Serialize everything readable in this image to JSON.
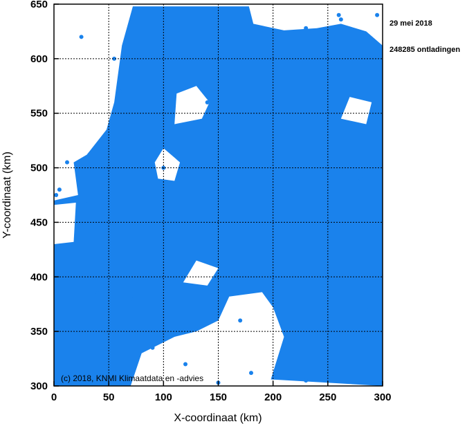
{
  "chart_data": {
    "type": "scatter",
    "xlabel": "X-coordinaat (km)",
    "ylabel": "Y-coordinaat (km)",
    "xlim": [
      0,
      300
    ],
    "ylim": [
      300,
      650
    ],
    "xticks": [
      0,
      50,
      100,
      150,
      200,
      250,
      300
    ],
    "yticks": [
      300,
      350,
      400,
      450,
      500,
      550,
      600,
      650
    ],
    "grid": true,
    "annotations": {
      "date": "29 mei 2018",
      "count": "248285 ontladingen",
      "copyright": "(c) 2018, KNMI Klimaatdata en -advies"
    },
    "series": [
      {
        "name": "ontladingen",
        "color": "#1a82ec",
        "coverage": [
          [
            0,
            300
          ],
          [
            70,
            300
          ],
          [
            80,
            330
          ],
          [
            110,
            345
          ],
          [
            130,
            350
          ],
          [
            150,
            360
          ],
          [
            160,
            382
          ],
          [
            190,
            386
          ],
          [
            200,
            372
          ],
          [
            210,
            345
          ],
          [
            198,
            306
          ],
          [
            300,
            300
          ],
          [
            300,
            612
          ],
          [
            285,
            625
          ],
          [
            262,
            632
          ],
          [
            240,
            628
          ],
          [
            210,
            626
          ],
          [
            182,
            632
          ],
          [
            178,
            648
          ],
          [
            72,
            648
          ],
          [
            62,
            612
          ],
          [
            55,
            560
          ],
          [
            48,
            535
          ],
          [
            30,
            512
          ],
          [
            18,
            505
          ],
          [
            22,
            475
          ],
          [
            0,
            470
          ]
        ],
        "gaps": [
          [
            [
              95,
              490
            ],
            [
              110,
              488
            ],
            [
              115,
              505
            ],
            [
              100,
              518
            ],
            [
              92,
              505
            ]
          ],
          [
            [
              110,
              540
            ],
            [
              135,
              545
            ],
            [
              142,
              560
            ],
            [
              130,
              575
            ],
            [
              112,
              568
            ]
          ],
          [
            [
              0,
              430
            ],
            [
              18,
              432
            ],
            [
              20,
              468
            ],
            [
              0,
              466
            ]
          ],
          [
            [
              262,
              545
            ],
            [
              285,
              540
            ],
            [
              290,
              560
            ],
            [
              270,
              565
            ]
          ],
          [
            [
              118,
              395
            ],
            [
              140,
              392
            ],
            [
              150,
              408
            ],
            [
              130,
              415
            ]
          ],
          [
            [
              160,
              330
            ],
            [
              195,
              325
            ],
            [
              205,
              345
            ],
            [
              195,
              372
            ],
            [
              165,
              378
            ],
            [
              150,
              355
            ]
          ]
        ],
        "points": [
          [
            25,
            620
          ],
          [
            12,
            505
          ],
          [
            5,
            480
          ],
          [
            30,
            470
          ],
          [
            60,
            520
          ],
          [
            55,
            600
          ],
          [
            215,
            620
          ],
          [
            260,
            640
          ],
          [
            295,
            640
          ],
          [
            280,
            490
          ],
          [
            285,
            370
          ],
          [
            292,
            345
          ],
          [
            250,
            310
          ],
          [
            230,
            305
          ],
          [
            180,
            312
          ],
          [
            150,
            303
          ],
          [
            120,
            320
          ],
          [
            90,
            335
          ],
          [
            40,
            385
          ],
          [
            70,
            380
          ],
          [
            140,
            560
          ],
          [
            100,
            500
          ],
          [
            210,
            350
          ],
          [
            170,
            360
          ],
          [
            2,
            475
          ],
          [
            60,
            570
          ],
          [
            230,
            628
          ],
          [
            262,
            636
          ]
        ]
      }
    ]
  }
}
